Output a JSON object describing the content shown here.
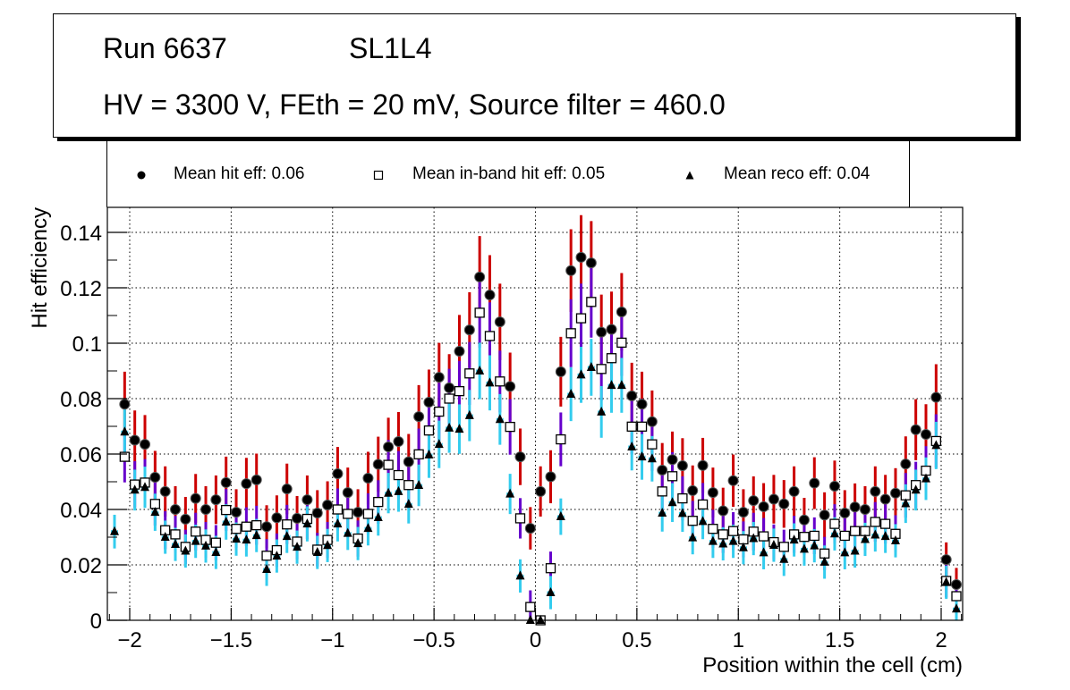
{
  "title": {
    "run": "Run 6637",
    "layer": "SL1L4",
    "conditions": "HV = 3300 V, FEth = 20 mV, Source filter = 460.0"
  },
  "legend": {
    "hit": "Mean hit  eff: 0.06",
    "inband": "Mean in-band hit eff: 0.05",
    "reco": "Mean reco eff: 0.04"
  },
  "colors": {
    "hit_error": "#cc0000",
    "inband_error": "#6600cc",
    "reco_error": "#33ccee",
    "marker": "#000000",
    "grid": "#000000"
  },
  "chart_data": {
    "type": "scatter",
    "title": "Run 6637 SL1L4 — HV = 3300 V, FEth = 20 mV, Source filter = 460.0",
    "xlabel": "Position within the cell (cm)",
    "ylabel": "Hit efficiency",
    "xlim": [
      -2.1,
      2.1
    ],
    "ylim": [
      0,
      0.15
    ],
    "xticks": [
      -2,
      -1.5,
      -1,
      -0.5,
      0,
      0.5,
      1,
      1.5,
      2
    ],
    "xtick_labels": [
      "−2",
      "−1.5",
      "−1",
      "−0.5",
      "0",
      "0.5",
      "1",
      "1.5",
      "2"
    ],
    "yticks": [
      0,
      0.02,
      0.04,
      0.06,
      0.08,
      0.1,
      0.12,
      0.14
    ],
    "ytick_labels": [
      "0",
      "0.02",
      "0.04",
      "0.06",
      "0.08",
      "0.1",
      "0.12",
      "0.14"
    ],
    "grid": true,
    "legend_position": "top",
    "bin_start": -2.075,
    "bin_step": 0.05,
    "series": [
      {
        "name": "Mean hit  eff: 0.06",
        "key": "hit",
        "marker": "filled-circle",
        "values": [
          null,
          0.078,
          0.065,
          0.0635,
          0.0516,
          0.0465,
          0.04,
          0.0365,
          0.044,
          0.04,
          0.0435,
          0.0497,
          0.039,
          0.0493,
          0.0507,
          0.0338,
          0.037,
          0.0474,
          0.0368,
          0.0435,
          0.0387,
          0.0416,
          0.0529,
          0.0461,
          0.039,
          0.0513,
          0.0563,
          0.0626,
          0.0645,
          0.0572,
          0.0735,
          0.0787,
          0.0877,
          0.0839,
          0.0971,
          0.1048,
          0.1239,
          0.1174,
          0.1077,
          0.0844,
          0.059,
          0.0332,
          0.0465,
          0.0518,
          0.0897,
          0.1262,
          0.131,
          0.129,
          0.104,
          0.105,
          0.1113,
          0.081,
          0.078,
          0.0717,
          0.0542,
          0.058,
          0.0558,
          0.0468,
          0.0559,
          0.0461,
          0.0395,
          0.0504,
          0.039,
          0.0432,
          0.041,
          0.0437,
          0.042,
          0.0465,
          0.0362,
          0.0495,
          0.038,
          0.0484,
          0.0387,
          0.0409,
          0.04,
          0.0465,
          0.0437,
          0.0459,
          0.0564,
          0.0688,
          0.0671,
          0.0805,
          0.0219,
          0.0129
        ]
      },
      {
        "name": "Mean in-band hit eff: 0.05",
        "key": "inband",
        "marker": "open-square",
        "values": [
          null,
          0.059,
          0.049,
          0.0497,
          0.042,
          0.0325,
          0.031,
          0.0265,
          0.032,
          0.029,
          0.028,
          0.0398,
          0.033,
          0.0338,
          0.0343,
          0.0233,
          0.0253,
          0.0346,
          0.0284,
          0.0366,
          0.0255,
          0.029,
          0.04,
          0.0384,
          0.0295,
          0.0384,
          0.0427,
          0.0561,
          0.0524,
          0.0488,
          0.0599,
          0.0685,
          0.0753,
          0.08,
          0.0827,
          0.0891,
          0.111,
          0.1026,
          0.0862,
          0.0698,
          0.0368,
          0.0048,
          0,
          0.0188,
          0.0653,
          0.1036,
          0.109,
          0.1149,
          0.0907,
          0.0946,
          0.1002,
          0.0699,
          0.0699,
          0.0635,
          0.0465,
          0.052,
          0.044,
          0.0359,
          0.0418,
          0.033,
          0.031,
          0.0322,
          0.0292,
          0.032,
          0.0303,
          0.0282,
          0.0265,
          0.031,
          0.0301,
          0.0305,
          0.0241,
          0.0348,
          0.0305,
          0.0322,
          0.0322,
          0.0355,
          0.0348,
          0.0312,
          0.0451,
          0.0488,
          0.054,
          0.0647,
          0.0142,
          0.0087
        ]
      },
      {
        "name": "Mean reco eff: 0.04",
        "key": "reco",
        "marker": "filled-triangle",
        "values": [
          0.032,
          0.068,
          0.047,
          0.048,
          0.039,
          0.03,
          0.0274,
          0.025,
          0.0285,
          0.0268,
          0.0245,
          0.0355,
          0.0293,
          0.029,
          0.0306,
          0.0184,
          0.0232,
          0.0303,
          0.0264,
          0.0348,
          0.0245,
          0.027,
          0.0348,
          0.0314,
          0.0277,
          0.0332,
          0.0371,
          0.0459,
          0.0465,
          0.0419,
          0.0487,
          0.0597,
          0.0635,
          0.0694,
          0.069,
          0.0739,
          0.09,
          0.0857,
          0.0725,
          0.0456,
          0.016,
          0,
          0,
          0.01,
          0.0374,
          0.0816,
          0.0886,
          0.0913,
          0.0752,
          0.0848,
          0.0848,
          0.0626,
          0.059,
          0.0583,
          0.0387,
          0.0425,
          0.0386,
          0.0298,
          0.0357,
          0.0285,
          0.0276,
          0.0285,
          0.0262,
          0.0295,
          0.0244,
          0.0271,
          0.022,
          0.029,
          0.0257,
          0.0269,
          0.021,
          0.0312,
          0.0244,
          0.025,
          0.0292,
          0.0308,
          0.0303,
          0.0287,
          0.0421,
          0.047,
          0.0511,
          0.0631,
          0.0137,
          0.0041
        ]
      }
    ]
  }
}
